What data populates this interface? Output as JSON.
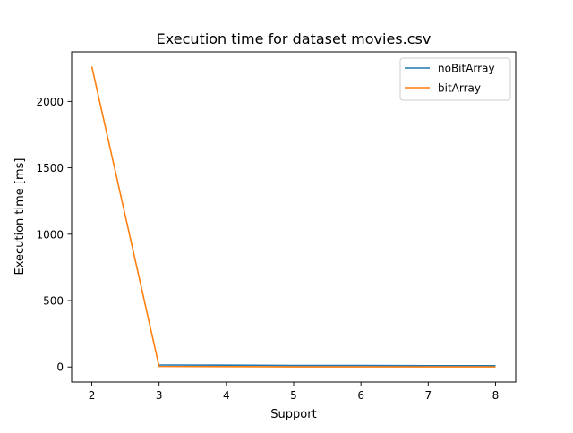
{
  "chart_data": {
    "type": "line",
    "title": "Execution time for dataset movies.csv",
    "xlabel": "Support",
    "ylabel": "Execution time [ms]",
    "x": [
      2,
      3,
      4,
      5,
      6,
      7,
      8
    ],
    "xlim": [
      1.7,
      8.3
    ],
    "ylim": [
      -113,
      2373
    ],
    "xticks": [
      2,
      3,
      4,
      5,
      6,
      7,
      8
    ],
    "yticks": [
      0,
      500,
      1000,
      1500,
      2000
    ],
    "grid": false,
    "legend_position": "upper right",
    "series": [
      {
        "name": "noBitArray",
        "color": "#1f77b4",
        "values": [
          null,
          15,
          14,
          11,
          11,
          10,
          10
        ]
      },
      {
        "name": "bitArray",
        "color": "#ff7f0e",
        "values": [
          2262,
          4,
          3,
          1,
          1,
          1,
          1
        ]
      }
    ]
  }
}
